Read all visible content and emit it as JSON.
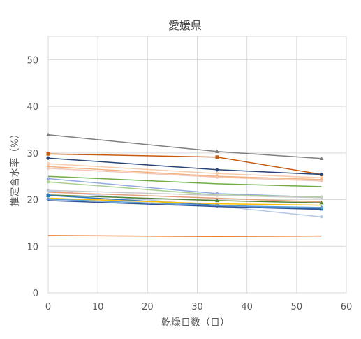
{
  "chart_data": {
    "type": "line",
    "title": "愛媛県",
    "xlabel": "乾燥日数（日）",
    "ylabel": "推定含水率（%）",
    "xlim": [
      0,
      60
    ],
    "ylim": [
      0,
      55
    ],
    "xticks": [
      0,
      10,
      20,
      30,
      40,
      50,
      60
    ],
    "yticks": [
      0,
      10,
      20,
      30,
      40,
      50
    ],
    "grid": true,
    "legend": "none",
    "x": [
      0,
      34,
      55
    ],
    "series": [
      {
        "color": "#7f7f7f",
        "marker": "triangle",
        "values": [
          33.9,
          30.3,
          28.8
        ]
      },
      {
        "color": "#c55a11",
        "marker": "square",
        "values": [
          29.8,
          29.1,
          25.4
        ]
      },
      {
        "color": "#264478",
        "marker": "diamond",
        "values": [
          28.9,
          26.4,
          25.4
        ]
      },
      {
        "color": "#f8cbad",
        "marker": "circle",
        "values": [
          27.7,
          25.6,
          24.7
        ]
      },
      {
        "color": "#f4b183",
        "marker": "circle",
        "values": [
          27.1,
          25.0,
          24.3
        ]
      },
      {
        "color": "#f2c6b4",
        "marker": "circle",
        "values": [
          26.7,
          24.8,
          24.0
        ]
      },
      {
        "color": "#70ad47",
        "marker": "none",
        "values": [
          25.0,
          23.4,
          22.8
        ]
      },
      {
        "color": "#8faadc",
        "marker": "circle",
        "values": [
          24.5,
          21.3,
          20.5
        ]
      },
      {
        "color": "#a9d18e",
        "marker": "circle",
        "values": [
          23.8,
          21.0,
          20.6
        ]
      },
      {
        "color": "#c9c9c9",
        "marker": "circle",
        "values": [
          22.0,
          20.9,
          20.4
        ]
      },
      {
        "color": "#b4c7e7",
        "marker": "circle",
        "values": [
          21.9,
          18.6,
          16.3
        ]
      },
      {
        "color": "#e2a07a",
        "marker": "none",
        "values": [
          21.6,
          20.3,
          19.5
        ]
      },
      {
        "color": "#548235",
        "marker": "triangle",
        "values": [
          21.0,
          19.8,
          19.3
        ]
      },
      {
        "color": "#2e75b6",
        "marker": "square",
        "values": [
          20.9,
          18.8,
          18.0
        ]
      },
      {
        "color": "#ffc000",
        "marker": "none",
        "values": [
          20.3,
          19.1,
          18.8
        ]
      },
      {
        "color": "#5b9bd5",
        "marker": "diamond",
        "values": [
          20.1,
          18.7,
          18.3
        ]
      },
      {
        "color": "#2f5597",
        "marker": "none",
        "values": [
          19.8,
          18.5,
          17.9
        ]
      },
      {
        "color": "#ed7d31",
        "marker": "none",
        "values": [
          12.3,
          12.1,
          12.2
        ]
      }
    ]
  }
}
